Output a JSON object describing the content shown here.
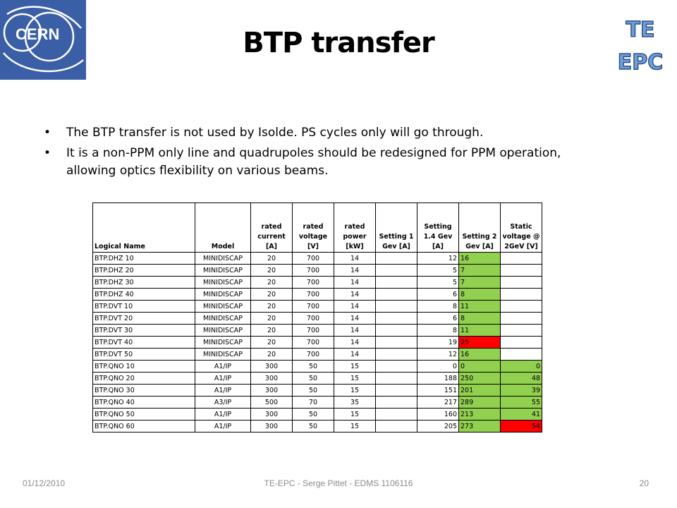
{
  "slide": {
    "title": "BTP transfer",
    "bullets": [
      "The BTP transfer is not used by Isolde. PS cycles only will go through.",
      "It is a non-PPM only line and quadrupoles should be redesigned for PPM operation, allowing optics flexibility on various beams."
    ],
    "logos": {
      "left_text": "CERN",
      "right_line1": "TE",
      "right_line2": "EPC"
    },
    "colors": {
      "cern_blue": "#3a5fa6",
      "green_cell": "#92d050",
      "red_cell": "#ff0000",
      "footer_gray": "#8c8c8c"
    }
  },
  "table": {
    "headers": [
      "Logical Name",
      "Model",
      "rated current [A]",
      "rated voltage [V]",
      "rated power [kW]",
      "Setting 1 Gev [A]",
      "Setting 1.4 Gev [A]",
      "Setting 2 Gev [A]",
      "Static voltage @ 2GeV [V]"
    ],
    "rows": [
      [
        "BTP.DHZ 10",
        "MINIDISCAP",
        "20",
        "700",
        "14",
        "",
        "12",
        "16",
        ""
      ],
      [
        "BTP.DHZ 20",
        "MINIDISCAP",
        "20",
        "700",
        "14",
        "",
        "5",
        "7",
        ""
      ],
      [
        "BTP.DHZ 30",
        "MINIDISCAP",
        "20",
        "700",
        "14",
        "",
        "5",
        "7",
        ""
      ],
      [
        "BTP.DHZ 40",
        "MINIDISCAP",
        "20",
        "700",
        "14",
        "",
        "6",
        "8",
        ""
      ],
      [
        "BTP.DVT 10",
        "MINIDISCAP",
        "20",
        "700",
        "14",
        "",
        "8",
        "11",
        ""
      ],
      [
        "BTP.DVT 20",
        "MINIDISCAP",
        "20",
        "700",
        "14",
        "",
        "6",
        "8",
        ""
      ],
      [
        "BTP.DVT 30",
        "MINIDISCAP",
        "20",
        "700",
        "14",
        "",
        "8",
        "11",
        ""
      ],
      [
        "BTP.DVT 40",
        "MINIDISCAP",
        "20",
        "700",
        "14",
        "",
        "19",
        "25",
        ""
      ],
      [
        "BTP.DVT 50",
        "MINIDISCAP",
        "20",
        "700",
        "14",
        "",
        "12",
        "16",
        ""
      ],
      [
        "BTP.QNO 10",
        "A1/IP",
        "300",
        "50",
        "15",
        "",
        "0",
        "0",
        "0"
      ],
      [
        "BTP.QNO 20",
        "A1/IP",
        "300",
        "50",
        "15",
        "",
        "188",
        "250",
        "48"
      ],
      [
        "BTP.QNO 30",
        "A1/IP",
        "300",
        "50",
        "15",
        "",
        "151",
        "201",
        "39"
      ],
      [
        "BTP.QNO 40",
        "A3/IP",
        "500",
        "70",
        "35",
        "",
        "217",
        "289",
        "55"
      ],
      [
        "BTP.QNO 50",
        "A1/IP",
        "300",
        "50",
        "15",
        "",
        "160",
        "213",
        "41"
      ],
      [
        "BTP.QNO 60",
        "A1/IP",
        "300",
        "50",
        "15",
        "",
        "205",
        "273",
        "54"
      ]
    ],
    "setting2_colors": [
      "green",
      "green",
      "green",
      "green",
      "green",
      "green",
      "green",
      "red",
      "green",
      "green",
      "green",
      "green",
      "green",
      "green",
      "green"
    ],
    "static_colors": [
      "",
      "",
      "",
      "",
      "",
      "",
      "",
      "",
      "",
      "green",
      "green",
      "green",
      "green",
      "green",
      "red"
    ]
  },
  "footer": {
    "date": "01/12/2010",
    "center": "TE-EPC - Serge Pittet - EDMS 1106116",
    "page": "20"
  }
}
